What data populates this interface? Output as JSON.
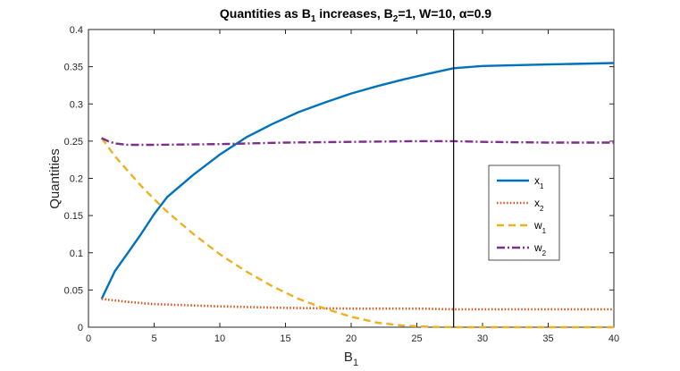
{
  "chart_data": {
    "type": "line",
    "title": {
      "prefix": "Quantities as B",
      "sub1": "1",
      "mid": " increases, B",
      "sub2": "2",
      "suffix": "=1, W=10, α=0.9"
    },
    "xlabel": {
      "main": "B",
      "sub": "1"
    },
    "ylabel": "Quantities",
    "xlim": [
      0,
      40
    ],
    "ylim": [
      0,
      0.4
    ],
    "xticks": [
      0,
      5,
      10,
      15,
      20,
      25,
      30,
      35,
      40
    ],
    "yticks": [
      0,
      0.05,
      0.1,
      0.15,
      0.2,
      0.25,
      0.3,
      0.35,
      0.4
    ],
    "vertical_line_x": 27.8,
    "grid": false,
    "legend_position": "right",
    "series": [
      {
        "name": "x1",
        "label_main": "x",
        "label_sub": "1",
        "color": "#0072BD",
        "dash": "solid",
        "x": [
          1,
          2,
          3,
          4,
          5,
          6,
          8,
          10,
          12,
          14,
          16,
          18,
          20,
          22,
          24,
          26,
          27.8,
          30,
          35,
          40
        ],
        "y": [
          0.038,
          0.075,
          0.1,
          0.125,
          0.152,
          0.175,
          0.205,
          0.232,
          0.255,
          0.273,
          0.289,
          0.302,
          0.314,
          0.324,
          0.333,
          0.341,
          0.348,
          0.351,
          0.353,
          0.355
        ]
      },
      {
        "name": "x2",
        "label_main": "x",
        "label_sub": "2",
        "color": "#D95319",
        "dash": "dotted",
        "x": [
          1,
          3,
          5,
          10,
          15,
          20,
          25,
          27.8,
          30,
          35,
          40
        ],
        "y": [
          0.038,
          0.034,
          0.031,
          0.028,
          0.026,
          0.025,
          0.025,
          0.024,
          0.024,
          0.024,
          0.024
        ]
      },
      {
        "name": "w1",
        "label_main": "w",
        "label_sub": "1",
        "color": "#EDB120",
        "dash": "dashed",
        "x": [
          1,
          2,
          3,
          4,
          5,
          6,
          8,
          10,
          12,
          14,
          16,
          18,
          20,
          22,
          24,
          26,
          27.8,
          30,
          35,
          40
        ],
        "y": [
          0.254,
          0.23,
          0.21,
          0.19,
          0.172,
          0.155,
          0.125,
          0.098,
          0.075,
          0.055,
          0.038,
          0.025,
          0.014,
          0.006,
          0.002,
          0.0005,
          0,
          0,
          0,
          0
        ]
      },
      {
        "name": "w2",
        "label_main": "w",
        "label_sub": "2",
        "color": "#7E2F8E",
        "dash": "dashdot",
        "x": [
          1,
          1.5,
          2,
          3,
          5,
          10,
          15,
          20,
          25,
          27.8,
          30,
          35,
          40
        ],
        "y": [
          0.254,
          0.25,
          0.247,
          0.245,
          0.245,
          0.246,
          0.248,
          0.249,
          0.25,
          0.25,
          0.249,
          0.248,
          0.248
        ]
      }
    ]
  }
}
